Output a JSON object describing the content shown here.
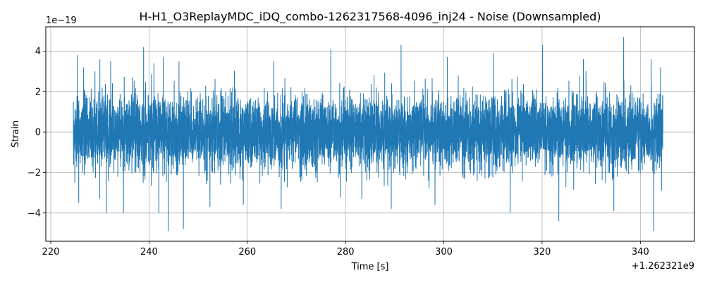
{
  "chart_data": {
    "type": "line",
    "title": "H-H1_O3ReplayMDC_iDQ_combo-1262317568-4096_inj24 - Noise (Downsampled)",
    "xlabel": "Time [s]",
    "ylabel": "Strain",
    "x_offset_label": "+1.262321e9",
    "y_scale_label": "1e−19",
    "xlim": [
      219,
      351
    ],
    "ylim": [
      -5.4,
      5.2
    ],
    "xticks": [
      220,
      240,
      260,
      280,
      300,
      320,
      340
    ],
    "xtick_labels": [
      "220",
      "240",
      "260",
      "280",
      "300",
      "320",
      "340"
    ],
    "yticks": [
      -4,
      -2,
      0,
      2,
      4
    ],
    "ytick_labels": [
      "−4",
      "−2",
      "0",
      "2",
      "4"
    ],
    "grid": true,
    "legend": "none",
    "series": [
      {
        "color": "#1f77b4",
        "x_range": [
          224.6,
          344.6
        ],
        "std": 0.9,
        "extremes": [
          {
            "x": 224.9,
            "y": -2.5
          },
          {
            "x": 225.4,
            "y": 3.8
          },
          {
            "x": 225.7,
            "y": -3.5
          },
          {
            "x": 229.0,
            "y": 3.0
          },
          {
            "x": 230.0,
            "y": 3.6
          },
          {
            "x": 231.3,
            "y": -4.0
          },
          {
            "x": 232.2,
            "y": 3.5
          },
          {
            "x": 234.8,
            "y": -4.0
          },
          {
            "x": 238.9,
            "y": 4.2
          },
          {
            "x": 241.0,
            "y": 3.4
          },
          {
            "x": 242.0,
            "y": -4.0
          },
          {
            "x": 242.9,
            "y": 3.7
          },
          {
            "x": 243.9,
            "y": -4.9
          },
          {
            "x": 246.1,
            "y": 3.5
          },
          {
            "x": 247.0,
            "y": -4.8
          },
          {
            "x": 252.4,
            "y": -3.7
          },
          {
            "x": 259.2,
            "y": -3.6
          },
          {
            "x": 265.4,
            "y": 3.5
          },
          {
            "x": 266.9,
            "y": -3.8
          },
          {
            "x": 277.0,
            "y": 4.1
          },
          {
            "x": 283.3,
            "y": -3.3
          },
          {
            "x": 289.3,
            "y": -3.8
          },
          {
            "x": 291.3,
            "y": 4.3
          },
          {
            "x": 298.2,
            "y": -3.6
          },
          {
            "x": 300.7,
            "y": 3.7
          },
          {
            "x": 310.1,
            "y": 3.9
          },
          {
            "x": 313.5,
            "y": -4.0
          },
          {
            "x": 320.1,
            "y": 4.3
          },
          {
            "x": 323.4,
            "y": -4.4
          },
          {
            "x": 328.4,
            "y": 3.6
          },
          {
            "x": 334.6,
            "y": -3.9
          },
          {
            "x": 336.6,
            "y": 4.7
          },
          {
            "x": 342.2,
            "y": 3.6
          },
          {
            "x": 342.7,
            "y": -4.9
          },
          {
            "x": 344.1,
            "y": 3.2
          },
          {
            "x": 344.3,
            "y": -2.9
          }
        ]
      }
    ]
  }
}
